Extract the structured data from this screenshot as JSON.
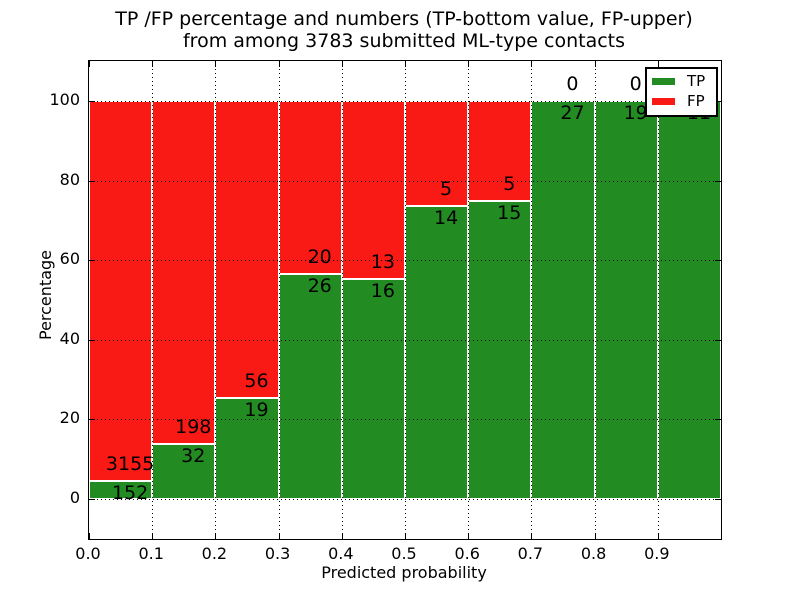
{
  "title": {
    "line1": "TP /FP percentage and numbers (TP-bottom value, FP-upper)",
    "line2": "from among 3783 submitted ML-type contacts"
  },
  "axes": {
    "xlabel": "Predicted probability",
    "ylabel": "Percentage"
  },
  "legend": {
    "entries": [
      {
        "label": "TP",
        "color": "#228b22"
      },
      {
        "label": "FP",
        "color": "#fa1a15"
      }
    ]
  },
  "chart_data": {
    "type": "bar",
    "stacked": true,
    "title": "TP /FP percentage and numbers (TP-bottom value, FP-upper) from among 3783 submitted ML-type contacts",
    "xlabel": "Predicted probability",
    "ylabel": "Percentage",
    "total_contacts": 3783,
    "xlim": [
      0.0,
      1.0
    ],
    "ylim": [
      -10,
      110
    ],
    "grid": true,
    "grid_style": "dotted",
    "legend_position": "upper right",
    "bin_edges": [
      0.0,
      0.1,
      0.2,
      0.3,
      0.4,
      0.5,
      0.6,
      0.7,
      0.8,
      0.9,
      1.0
    ],
    "xtick_labels": [
      "0.0",
      "0.1",
      "0.2",
      "0.3",
      "0.4",
      "0.5",
      "0.6",
      "0.7",
      "0.8",
      "0.9"
    ],
    "ytick_values": [
      0,
      20,
      40,
      60,
      80,
      100
    ],
    "series": [
      {
        "name": "TP",
        "color": "#228b22",
        "counts": [
          152,
          32,
          19,
          26,
          16,
          14,
          15,
          27,
          19,
          11
        ]
      },
      {
        "name": "FP",
        "color": "#fa1a15",
        "counts": [
          3155,
          198,
          56,
          20,
          13,
          5,
          5,
          0,
          0,
          0
        ]
      }
    ],
    "tp_percent_per_bin": [
      4.6,
      13.9,
      25.3,
      56.5,
      55.2,
      73.7,
      75.0,
      100.0,
      100.0,
      100.0
    ],
    "bar_value_labels_note": "TP count printed just below segment boundary, FP count just above it"
  }
}
